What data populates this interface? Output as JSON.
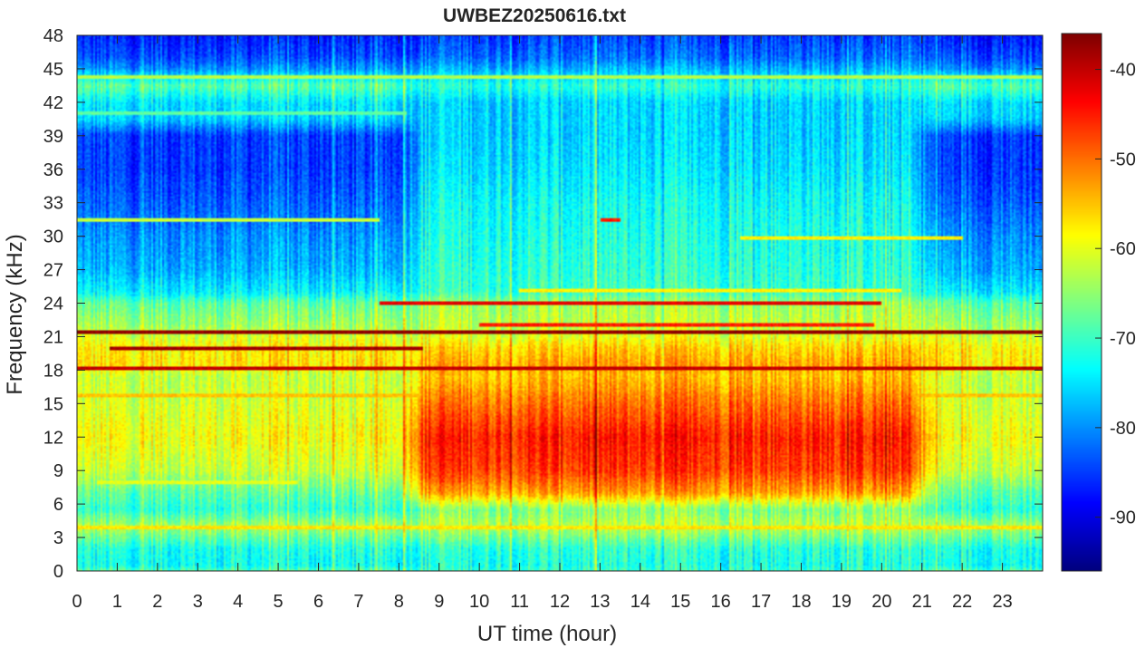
{
  "chart_data": {
    "type": "heatmap",
    "title": "UWBEZ20250616.txt",
    "xlabel": "UT time (hour)",
    "ylabel": "Frequency (kHz)",
    "xlim": [
      0,
      24
    ],
    "ylim": [
      0,
      48
    ],
    "x_ticks": [
      "0",
      "1",
      "2",
      "3",
      "4",
      "5",
      "6",
      "7",
      "8",
      "9",
      "10",
      "11",
      "12",
      "13",
      "14",
      "15",
      "16",
      "17",
      "18",
      "19",
      "20",
      "21",
      "22",
      "23"
    ],
    "y_ticks": [
      "0",
      "3",
      "6",
      "9",
      "12",
      "15",
      "18",
      "21",
      "24",
      "27",
      "30",
      "33",
      "36",
      "39",
      "42",
      "45",
      "48"
    ],
    "colorbar": {
      "range": [
        -96,
        -36
      ],
      "ticks": [
        "-90",
        "-80",
        "-70",
        "-60",
        "-50",
        "-40"
      ],
      "colormap": "jet"
    },
    "background_profile": {
      "frequency_khz": [
        0,
        0.5,
        2,
        4,
        5.5,
        7,
        9,
        12,
        15,
        17.5,
        18.5,
        20,
        21,
        22,
        24,
        25,
        27,
        30,
        33,
        36,
        39,
        40.5,
        42,
        43.5,
        45,
        46,
        48
      ],
      "level_night_db": [
        -68,
        -73,
        -72,
        -63,
        -71,
        -68,
        -62,
        -59,
        -61,
        -62,
        -57,
        -58,
        -61,
        -64,
        -68,
        -74,
        -78,
        -80,
        -83,
        -85,
        -85,
        -76,
        -75,
        -68,
        -80,
        -84,
        -87
      ],
      "level_day_db": [
        -70,
        -72,
        -71,
        -62,
        -66,
        -53,
        -47,
        -45,
        -50,
        -55,
        -53,
        -56,
        -60,
        -62,
        -64,
        -70,
        -71,
        -72,
        -73,
        -75,
        -76,
        -76,
        -76,
        -71,
        -78,
        -82,
        -85
      ]
    },
    "daytime_window_hours": [
      8.3,
      21.0
    ],
    "narrowband_lines": [
      {
        "frequency_khz": 18.2,
        "start_hour": 0.0,
        "end_hour": 24.0,
        "level_db": -40
      },
      {
        "frequency_khz": 19.95,
        "start_hour": 0.8,
        "end_hour": 8.6,
        "level_db": -38
      },
      {
        "frequency_khz": 21.35,
        "start_hour": 0.0,
        "end_hour": 24.0,
        "level_db": -37
      },
      {
        "frequency_khz": 22.1,
        "start_hour": 10.0,
        "end_hour": 19.8,
        "level_db": -45
      },
      {
        "frequency_khz": 23.95,
        "start_hour": 7.5,
        "end_hour": 20.0,
        "level_db": -42
      },
      {
        "frequency_khz": 25.1,
        "start_hour": 11.0,
        "end_hour": 20.5,
        "level_db": -58
      },
      {
        "frequency_khz": 29.8,
        "start_hour": 16.5,
        "end_hour": 22.0,
        "level_db": -58
      },
      {
        "frequency_khz": 31.5,
        "start_hour": 0.0,
        "end_hour": 7.5,
        "level_db": -62
      },
      {
        "frequency_khz": 31.5,
        "start_hour": 13.0,
        "end_hour": 13.5,
        "level_db": -45
      },
      {
        "frequency_khz": 44.3,
        "start_hour": 0.0,
        "end_hour": 24.0,
        "level_db": -63
      },
      {
        "frequency_khz": 41.0,
        "start_hour": 0.0,
        "end_hour": 8.2,
        "level_db": -68
      },
      {
        "frequency_khz": 3.9,
        "start_hour": 0.0,
        "end_hour": 24.0,
        "level_db": -57
      },
      {
        "frequency_khz": 8.0,
        "start_hour": 0.5,
        "end_hour": 5.5,
        "level_db": -60
      },
      {
        "frequency_khz": 15.7,
        "start_hour": 0.0,
        "end_hour": 24.0,
        "level_db": -55
      }
    ],
    "grid": false,
    "colorbar_position": "right"
  }
}
